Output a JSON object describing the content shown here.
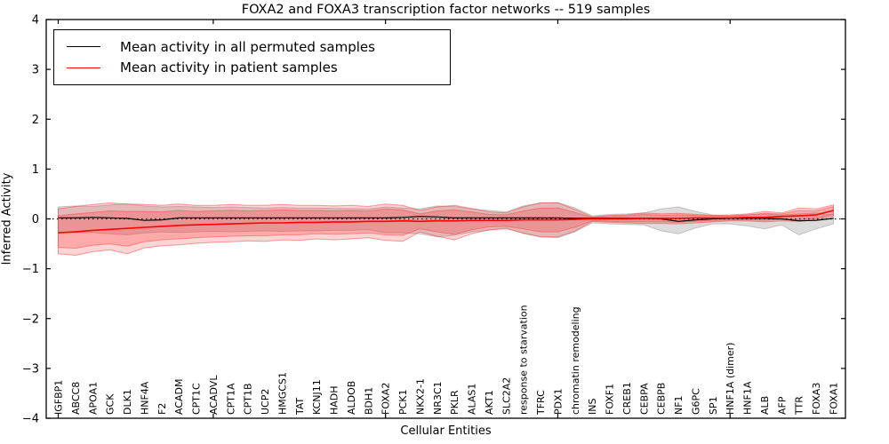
{
  "title": "FOXA2 and FOXA3 transcription factor networks -- 519 samples",
  "axes": {
    "xlabel": "Cellular Entities",
    "ylabel": "Inferred Activity"
  },
  "legend": {
    "position": "upper left",
    "entries": [
      {
        "label": "Mean activity in all permuted samples",
        "color": "#000000"
      },
      {
        "label": "Mean activity in patient samples",
        "color": "#ff0000"
      }
    ]
  },
  "chart_data": {
    "type": "line",
    "title": "FOXA2 and FOXA3 transcription factor networks -- 519 samples",
    "xlabel": "Cellular Entities",
    "ylabel": "Inferred Activity",
    "ylim": [
      -4,
      4
    ],
    "yticks": [
      -4,
      -3,
      -2,
      -1,
      0,
      1,
      2,
      3,
      4
    ],
    "ytick_labels": [
      "−4",
      "−3",
      "−2",
      "−1",
      "0",
      "1",
      "2",
      "3",
      "4"
    ],
    "xtick_positions": [
      0,
      9,
      19,
      29,
      39
    ],
    "grid": false,
    "zero_line_style": "dotted",
    "legend_position": "upper left",
    "categories": [
      "IGFBP1",
      "ABCC8",
      "APOA1",
      "GCK",
      "DLK1",
      "HNF4A",
      "F2",
      "ACADM",
      "CPT1C",
      "ACADVL",
      "CPT1A",
      "CPT1B",
      "UCP2",
      "HMGCS1",
      "TAT",
      "KCNJ11",
      "HADH",
      "ALDOB",
      "BDH1",
      "FOXA2",
      "PCK1",
      "NKX2-1",
      "NR3C1",
      "PKLR",
      "ALAS1",
      "AKT1",
      "SLC2A2",
      "response to starvation",
      "TFRC",
      "PDX1",
      "chromatin remodeling",
      "INS",
      "FOXF1",
      "CREB1",
      "CEBPA",
      "CEBPB",
      "NF1",
      "G6PC",
      "SP1",
      "HNF1A (dimer)",
      "HNF1A",
      "ALB",
      "AFP",
      "TTR",
      "FOXA3",
      "FOXA1"
    ],
    "series": [
      {
        "name": "Mean activity in all permuted samples",
        "color": "#000000",
        "band_color": "#828282",
        "values": [
          0.02,
          0.02,
          0.03,
          0.02,
          0.01,
          -0.03,
          -0.02,
          0.02,
          0.02,
          0.02,
          0.02,
          0.02,
          0.02,
          0.02,
          0.02,
          0.02,
          0.02,
          0.02,
          0.02,
          0.02,
          0.03,
          0.05,
          0.04,
          0.02,
          0.02,
          0.02,
          0.02,
          0.02,
          0.02,
          0.02,
          0.01,
          0.01,
          0.01,
          0.01,
          0.01,
          0.0,
          -0.05,
          -0.02,
          0.0,
          0.01,
          0.01,
          0.01,
          0.0,
          -0.04,
          -0.03,
          0.01
        ],
        "band_hi": [
          0.24,
          0.26,
          0.25,
          0.28,
          0.3,
          0.26,
          0.24,
          0.25,
          0.24,
          0.23,
          0.24,
          0.23,
          0.22,
          0.23,
          0.22,
          0.22,
          0.21,
          0.21,
          0.2,
          0.24,
          0.22,
          0.2,
          0.26,
          0.25,
          0.2,
          0.17,
          0.14,
          0.26,
          0.32,
          0.33,
          0.22,
          0.06,
          0.09,
          0.1,
          0.12,
          0.2,
          0.24,
          0.15,
          0.08,
          0.06,
          0.08,
          0.1,
          0.08,
          0.1,
          0.12,
          0.08
        ],
        "band_lo": [
          -0.26,
          -0.28,
          -0.27,
          -0.3,
          -0.32,
          -0.28,
          -0.26,
          -0.27,
          -0.26,
          -0.25,
          -0.26,
          -0.25,
          -0.24,
          -0.25,
          -0.24,
          -0.24,
          -0.23,
          -0.23,
          -0.22,
          -0.28,
          -0.28,
          -0.3,
          -0.36,
          -0.33,
          -0.26,
          -0.23,
          -0.18,
          -0.3,
          -0.36,
          -0.38,
          -0.26,
          -0.08,
          -0.1,
          -0.11,
          -0.12,
          -0.24,
          -0.3,
          -0.18,
          -0.1,
          -0.1,
          -0.14,
          -0.2,
          -0.12,
          -0.32,
          -0.2,
          -0.1
        ]
      },
      {
        "name": "Mean activity in patient samples",
        "color": "#ff0000",
        "band_color": "#ff2a2a",
        "values": [
          -0.28,
          -0.26,
          -0.23,
          -0.21,
          -0.19,
          -0.17,
          -0.15,
          -0.13,
          -0.12,
          -0.11,
          -0.1,
          -0.09,
          -0.08,
          -0.08,
          -0.07,
          -0.07,
          -0.06,
          -0.06,
          -0.05,
          -0.05,
          -0.04,
          -0.05,
          -0.04,
          -0.04,
          -0.03,
          -0.03,
          -0.03,
          -0.02,
          -0.02,
          -0.02,
          -0.01,
          0.0,
          0.0,
          0.0,
          0.01,
          0.01,
          0.01,
          0.02,
          0.02,
          0.02,
          0.03,
          0.03,
          0.05,
          0.06,
          0.08,
          0.17
        ],
        "band_outer_hi": [
          0.2,
          0.25,
          0.29,
          0.32,
          0.3,
          0.29,
          0.27,
          0.3,
          0.27,
          0.27,
          0.29,
          0.27,
          0.27,
          0.29,
          0.27,
          0.27,
          0.26,
          0.27,
          0.25,
          0.3,
          0.27,
          0.17,
          0.24,
          0.27,
          0.21,
          0.14,
          0.12,
          0.24,
          0.32,
          0.32,
          0.19,
          0.04,
          0.07,
          0.08,
          0.12,
          0.1,
          0.11,
          0.09,
          0.07,
          0.08,
          0.1,
          0.15,
          0.12,
          0.22,
          0.2,
          0.28
        ],
        "band_outer_lo": [
          -0.7,
          -0.73,
          -0.66,
          -0.62,
          -0.7,
          -0.58,
          -0.54,
          -0.52,
          -0.49,
          -0.47,
          -0.46,
          -0.44,
          -0.45,
          -0.42,
          -0.43,
          -0.4,
          -0.42,
          -0.4,
          -0.38,
          -0.43,
          -0.45,
          -0.26,
          -0.35,
          -0.42,
          -0.3,
          -0.22,
          -0.2,
          -0.28,
          -0.36,
          -0.36,
          -0.24,
          -0.05,
          -0.07,
          -0.08,
          -0.09,
          -0.09,
          -0.1,
          -0.08,
          -0.06,
          -0.04,
          -0.04,
          -0.06,
          -0.04,
          -0.05,
          -0.02,
          0.06
        ],
        "band_inner_hi": [
          0.06,
          0.1,
          0.13,
          0.16,
          0.15,
          0.15,
          0.14,
          0.17,
          0.15,
          0.16,
          0.17,
          0.16,
          0.17,
          0.18,
          0.17,
          0.17,
          0.16,
          0.17,
          0.16,
          0.2,
          0.18,
          0.1,
          0.16,
          0.18,
          0.14,
          0.09,
          0.08,
          0.16,
          0.22,
          0.22,
          0.13,
          0.03,
          0.05,
          0.06,
          0.09,
          0.07,
          0.08,
          0.07,
          0.06,
          0.06,
          0.08,
          0.11,
          0.1,
          0.17,
          0.16,
          0.25
        ],
        "band_inner_lo": [
          -0.57,
          -0.59,
          -0.53,
          -0.5,
          -0.55,
          -0.46,
          -0.42,
          -0.4,
          -0.38,
          -0.36,
          -0.35,
          -0.34,
          -0.34,
          -0.32,
          -0.32,
          -0.3,
          -0.31,
          -0.3,
          -0.28,
          -0.32,
          -0.33,
          -0.2,
          -0.26,
          -0.31,
          -0.22,
          -0.16,
          -0.15,
          -0.2,
          -0.26,
          -0.26,
          -0.17,
          -0.04,
          -0.05,
          -0.06,
          -0.06,
          -0.06,
          -0.07,
          -0.05,
          -0.04,
          -0.02,
          -0.02,
          -0.03,
          -0.01,
          -0.02,
          0.01,
          0.09
        ]
      }
    ]
  },
  "colors": {
    "background": "#ffffff",
    "frame": "#000000",
    "permuted_line": "#000000",
    "patient_line": "#ff0000"
  }
}
